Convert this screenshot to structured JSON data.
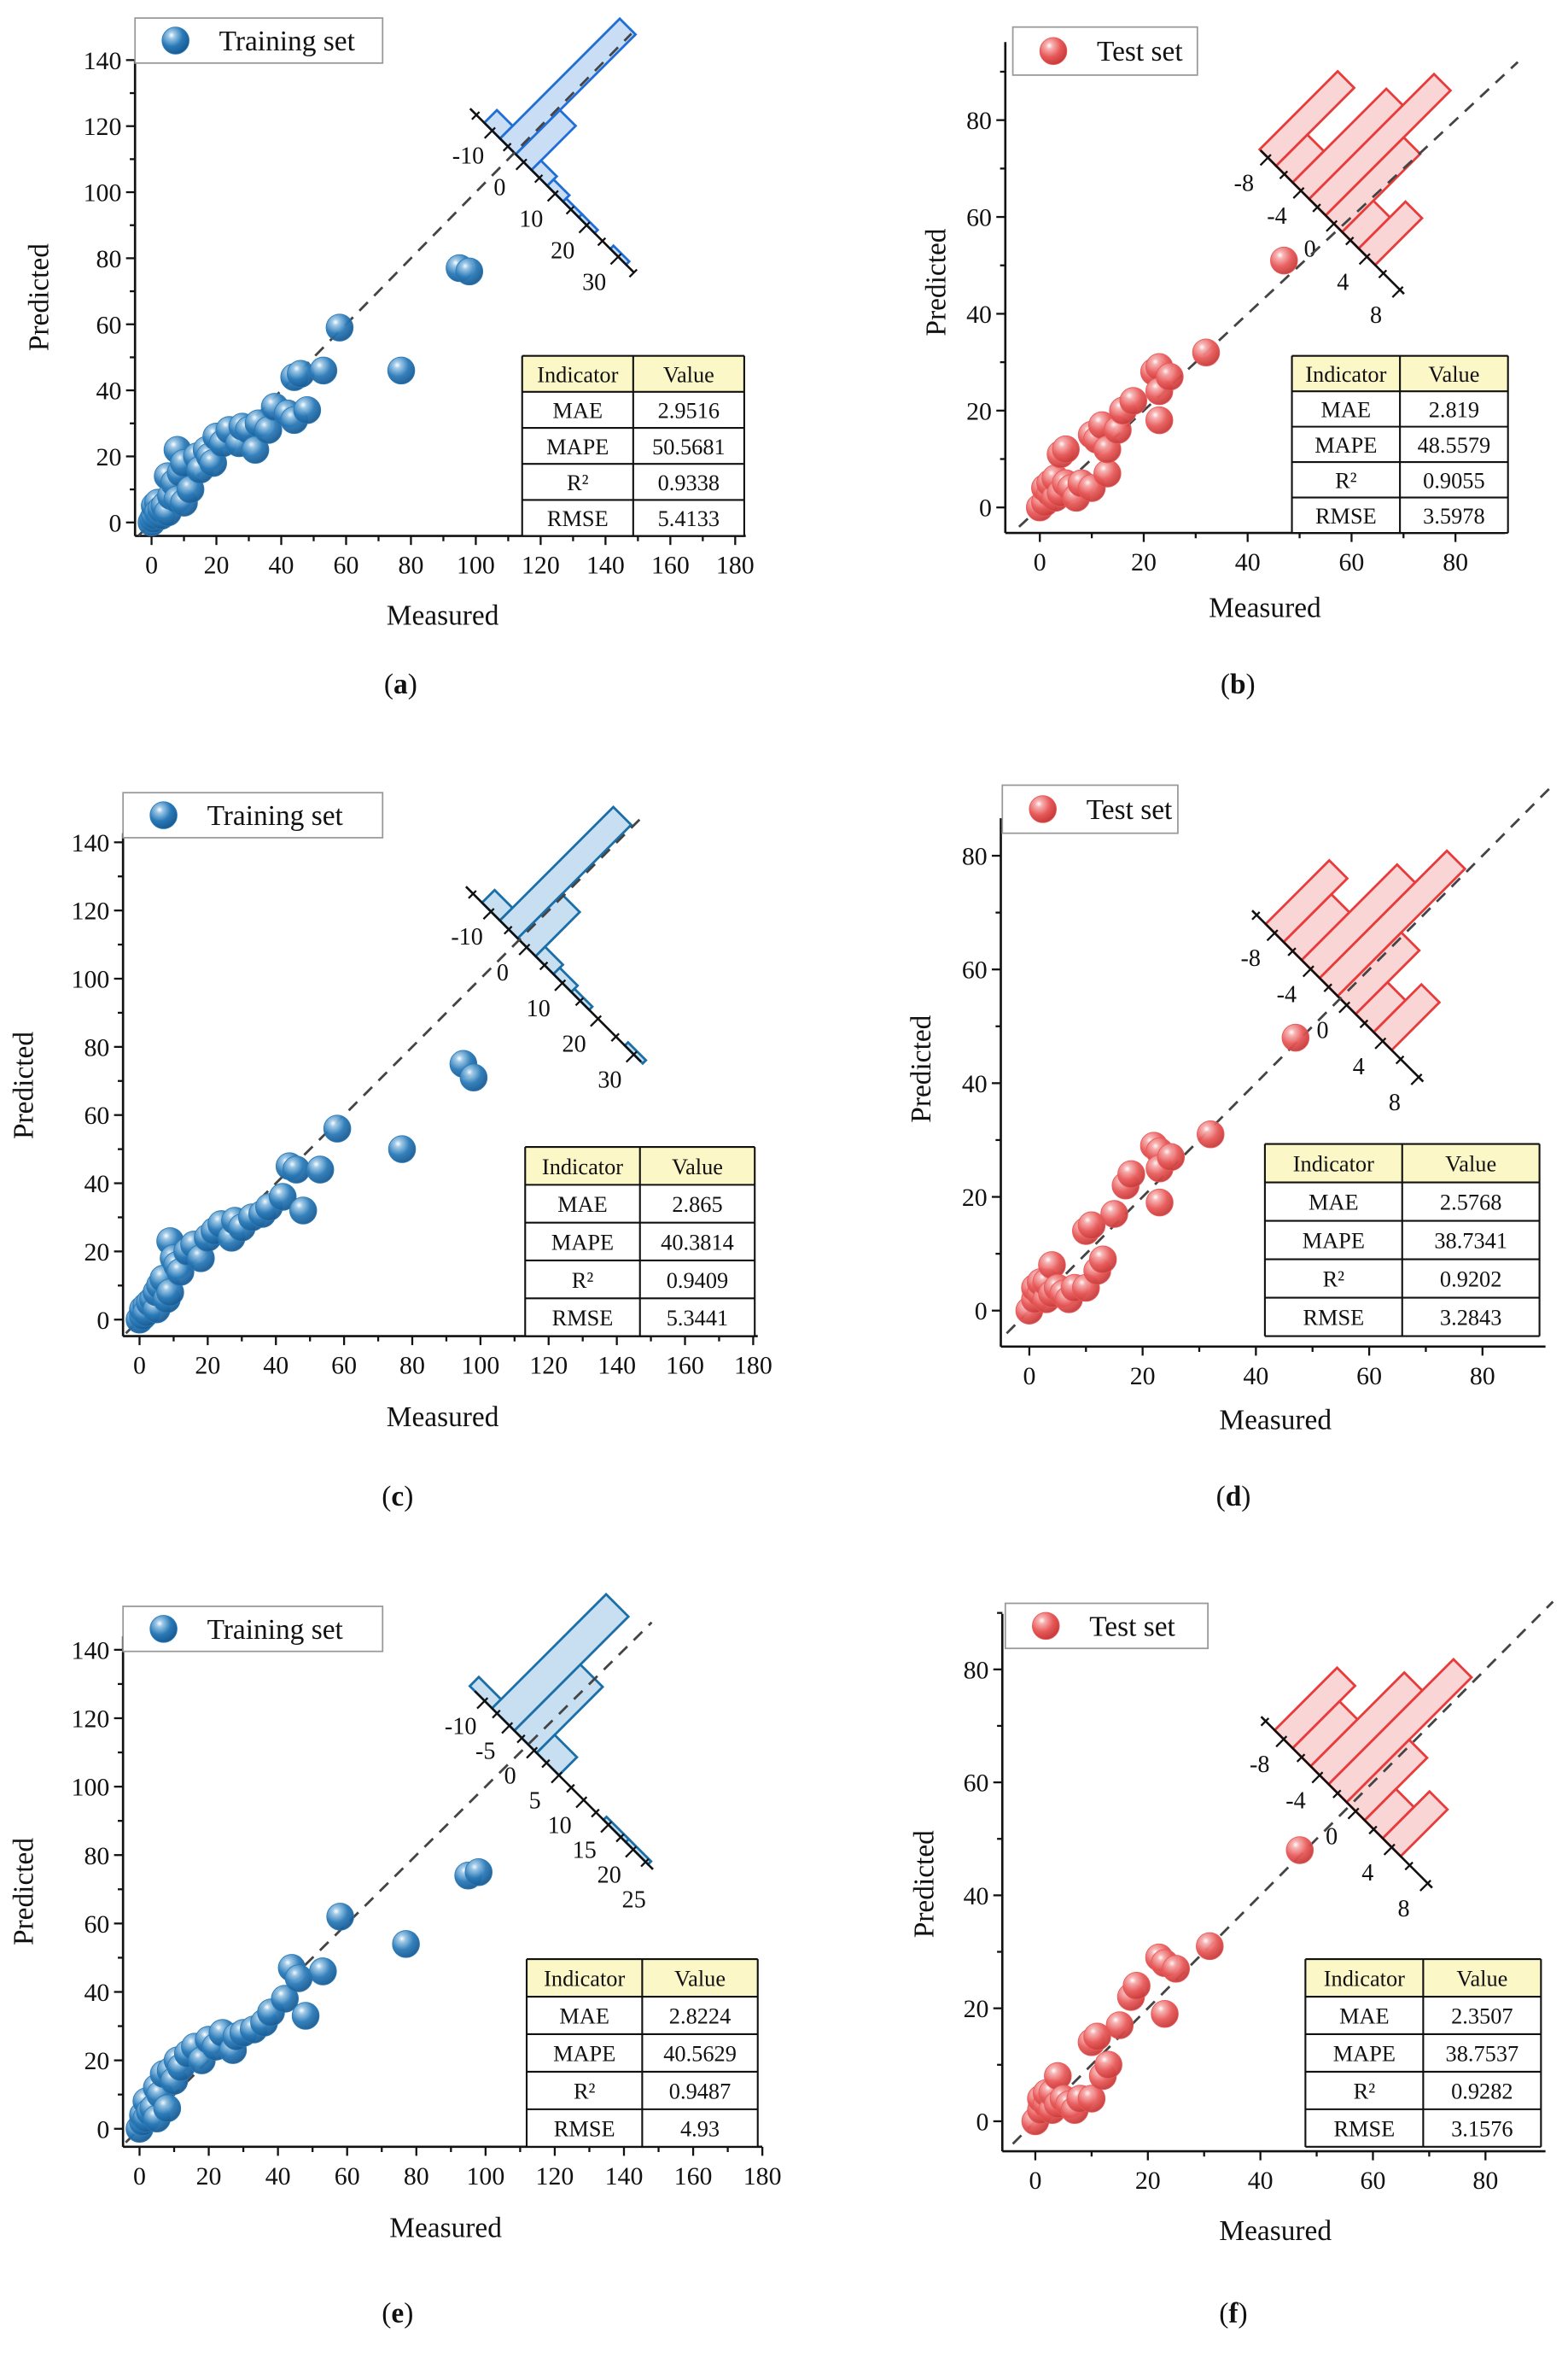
{
  "chart_data": [
    {
      "panel": "a",
      "caption": [
        "(",
        "a",
        ")"
      ],
      "type": "scatter",
      "legend": "Training set",
      "xlabel": "Measured",
      "ylabel": "Predicted",
      "xlim": [
        -5,
        180
      ],
      "ylim": [
        -4,
        145
      ],
      "xticks": [
        0,
        20,
        40,
        60,
        80,
        100,
        120,
        140,
        160,
        180
      ],
      "yticks": [
        0,
        20,
        40,
        60,
        80,
        100,
        120,
        140
      ],
      "colors": {
        "point": "#2a7ab8",
        "hist_fill": "#c9ddf5",
        "hist_stroke": "#1f6fd6"
      },
      "table": {
        "header": [
          "Indicator",
          "Value"
        ],
        "rows": [
          [
            "MAE",
            "2.9516"
          ],
          [
            "MAPE",
            "50.5681"
          ],
          [
            "R²",
            "0.9338"
          ],
          [
            "RMSE",
            "5.4133"
          ]
        ]
      },
      "residual_hist": {
        "ticks": [
          -10,
          0,
          10,
          20,
          30
        ],
        "bin_start": -12.5,
        "bin_width": 5,
        "counts": [
          4,
          38,
          14,
          3,
          2,
          1,
          1,
          0,
          1
        ]
      },
      "points": [
        [
          0,
          0
        ],
        [
          0.5,
          1
        ],
        [
          1,
          2
        ],
        [
          1,
          5
        ],
        [
          2,
          6
        ],
        [
          2,
          3
        ],
        [
          3,
          2
        ],
        [
          3,
          4
        ],
        [
          4,
          5
        ],
        [
          5,
          3
        ],
        [
          5,
          14
        ],
        [
          6,
          8
        ],
        [
          7,
          12
        ],
        [
          8,
          22
        ],
        [
          8,
          7
        ],
        [
          9,
          15
        ],
        [
          10,
          18
        ],
        [
          10,
          6
        ],
        [
          12,
          10
        ],
        [
          14,
          20
        ],
        [
          15,
          16
        ],
        [
          17,
          22
        ],
        [
          18,
          20
        ],
        [
          19,
          18
        ],
        [
          20,
          26
        ],
        [
          22,
          24
        ],
        [
          24,
          28
        ],
        [
          27,
          24
        ],
        [
          28,
          29
        ],
        [
          30,
          28
        ],
        [
          32,
          22
        ],
        [
          33,
          30
        ],
        [
          36,
          28
        ],
        [
          38,
          35
        ],
        [
          42,
          33
        ],
        [
          44,
          31
        ],
        [
          44,
          44
        ],
        [
          46,
          45
        ],
        [
          48,
          34
        ],
        [
          53,
          46
        ],
        [
          58,
          59
        ],
        [
          77,
          46
        ],
        [
          95,
          77
        ],
        [
          98,
          76
        ]
      ]
    },
    {
      "panel": "b",
      "caption": [
        "(",
        "b",
        ")"
      ],
      "type": "scatter",
      "legend": "Test set",
      "xlabel": "Measured",
      "ylabel": "Predicted",
      "xlim": [
        -5,
        90
      ],
      "ylim": [
        -4,
        90
      ],
      "xticks": [
        0,
        20,
        40,
        60,
        80
      ],
      "yticks": [
        0,
        20,
        40,
        60,
        80
      ],
      "colors": {
        "point": "#e85a5a",
        "hist_fill": "#f9d5d5",
        "hist_stroke": "#e83b3b"
      },
      "table": {
        "header": [
          "Indicator",
          "Value"
        ],
        "rows": [
          [
            "MAE",
            "2.819"
          ],
          [
            "MAPE",
            "48.5579"
          ],
          [
            "R²",
            "0.9055"
          ],
          [
            "RMSE",
            "3.5978"
          ]
        ]
      },
      "residual_hist": {
        "ticks": [
          -8,
          -4,
          0,
          4,
          8
        ],
        "bin_start": -9,
        "bin_width": 2,
        "counts": [
          5,
          2,
          6,
          8,
          5,
          2,
          3
        ]
      },
      "points": [
        [
          0,
          0
        ],
        [
          1,
          1
        ],
        [
          1,
          4
        ],
        [
          2,
          3
        ],
        [
          2,
          5
        ],
        [
          3,
          2
        ],
        [
          3,
          6
        ],
        [
          4,
          3
        ],
        [
          4,
          11
        ],
        [
          5,
          12
        ],
        [
          5,
          5
        ],
        [
          6,
          4
        ],
        [
          7,
          2
        ],
        [
          8,
          5
        ],
        [
          10,
          4
        ],
        [
          10,
          15
        ],
        [
          11,
          14
        ],
        [
          12,
          17
        ],
        [
          13,
          7
        ],
        [
          13,
          12
        ],
        [
          15,
          16
        ],
        [
          16,
          20
        ],
        [
          18,
          22
        ],
        [
          22,
          28
        ],
        [
          23,
          29
        ],
        [
          23,
          24
        ],
        [
          23,
          18
        ],
        [
          25,
          27
        ],
        [
          32,
          32
        ],
        [
          47,
          51
        ]
      ]
    },
    {
      "panel": "c",
      "caption": [
        "(",
        "c",
        ")"
      ],
      "type": "scatter",
      "legend": "Training set",
      "xlabel": "Measured",
      "ylabel": "Predicted",
      "xlim": [
        -5,
        180
      ],
      "ylim": [
        -4,
        145
      ],
      "xticks": [
        0,
        20,
        40,
        60,
        80,
        100,
        120,
        140,
        160,
        180
      ],
      "yticks": [
        0,
        20,
        40,
        60,
        80,
        100,
        120,
        140
      ],
      "colors": {
        "point": "#2a7ab8",
        "hist_fill": "#c7dff0",
        "hist_stroke": "#1a6fa8"
      },
      "table": {
        "header": [
          "Indicator",
          "Value"
        ],
        "rows": [
          [
            "MAE",
            "2.865"
          ],
          [
            "MAPE",
            "40.3814"
          ],
          [
            "R²",
            "0.9409"
          ],
          [
            "RMSE",
            "5.3441"
          ]
        ]
      },
      "residual_hist": {
        "ticks": [
          -10,
          0,
          10,
          20,
          30
        ],
        "bin_start": -12.5,
        "bin_width": 5,
        "counts": [
          4,
          36,
          14,
          3,
          2,
          1,
          0,
          0,
          1
        ]
      },
      "points": [
        [
          0,
          0
        ],
        [
          1,
          1
        ],
        [
          1,
          3
        ],
        [
          2,
          4
        ],
        [
          2,
          2
        ],
        [
          3,
          5
        ],
        [
          4,
          6
        ],
        [
          5,
          3
        ],
        [
          5,
          8
        ],
        [
          6,
          10
        ],
        [
          7,
          12
        ],
        [
          8,
          6
        ],
        [
          9,
          23
        ],
        [
          9,
          8
        ],
        [
          10,
          18
        ],
        [
          11,
          16
        ],
        [
          12,
          14
        ],
        [
          14,
          20
        ],
        [
          16,
          22
        ],
        [
          18,
          18
        ],
        [
          20,
          24
        ],
        [
          22,
          26
        ],
        [
          24,
          28
        ],
        [
          27,
          24
        ],
        [
          28,
          29
        ],
        [
          30,
          27
        ],
        [
          33,
          30
        ],
        [
          36,
          31
        ],
        [
          38,
          33
        ],
        [
          42,
          36
        ],
        [
          44,
          45
        ],
        [
          46,
          44
        ],
        [
          48,
          32
        ],
        [
          53,
          44
        ],
        [
          58,
          56
        ],
        [
          77,
          50
        ],
        [
          95,
          75
        ],
        [
          98,
          71
        ]
      ]
    },
    {
      "panel": "d",
      "caption": [
        "(",
        "d",
        ")"
      ],
      "type": "scatter",
      "legend": "Test set",
      "xlabel": "Measured",
      "ylabel": "Predicted",
      "xlim": [
        -5,
        90
      ],
      "ylim": [
        -6,
        90
      ],
      "xticks": [
        0,
        20,
        40,
        60,
        80
      ],
      "yticks": [
        0,
        20,
        40,
        60,
        80
      ],
      "colors": {
        "point": "#e85a5a",
        "hist_fill": "#f9d5d5",
        "hist_stroke": "#e83b3b"
      },
      "table": {
        "header": [
          "Indicator",
          "Value"
        ],
        "rows": [
          [
            "MAE",
            "2.5768"
          ],
          [
            "MAPE",
            "38.7341"
          ],
          [
            "R²",
            "0.9202"
          ],
          [
            "RMSE",
            "3.2843"
          ]
        ]
      },
      "residual_hist": {
        "ticks": [
          -8,
          -4,
          0,
          4,
          8
        ],
        "bin_start": -9,
        "bin_width": 2,
        "counts": [
          4,
          3,
          6,
          8,
          4,
          2,
          3
        ]
      },
      "points": [
        [
          0,
          0
        ],
        [
          1,
          2
        ],
        [
          1,
          4
        ],
        [
          2,
          3
        ],
        [
          2,
          5
        ],
        [
          3,
          2
        ],
        [
          3,
          5
        ],
        [
          4,
          8
        ],
        [
          4,
          3
        ],
        [
          5,
          4
        ],
        [
          6,
          3
        ],
        [
          7,
          2
        ],
        [
          8,
          4
        ],
        [
          10,
          4
        ],
        [
          10,
          14
        ],
        [
          11,
          15
        ],
        [
          12,
          7
        ],
        [
          13,
          9
        ],
        [
          15,
          17
        ],
        [
          17,
          22
        ],
        [
          18,
          24
        ],
        [
          22,
          29
        ],
        [
          23,
          28
        ],
        [
          23,
          25
        ],
        [
          23,
          19
        ],
        [
          25,
          27
        ],
        [
          32,
          31
        ],
        [
          47,
          48
        ]
      ]
    },
    {
      "panel": "e",
      "caption": [
        "(",
        "e",
        ")"
      ],
      "type": "scatter",
      "legend": "Training set",
      "xlabel": "Measured",
      "ylabel": "Predicted",
      "xlim": [
        -5,
        180
      ],
      "ylim": [
        -4,
        145
      ],
      "xticks": [
        0,
        20,
        40,
        60,
        80,
        100,
        120,
        140,
        160,
        180
      ],
      "yticks": [
        0,
        20,
        40,
        60,
        80,
        100,
        120,
        140
      ],
      "colors": {
        "point": "#2a7ab8",
        "hist_fill": "#c7dff0",
        "hist_stroke": "#1a6fa8"
      },
      "table": {
        "header": [
          "Indicator",
          "Value"
        ],
        "rows": [
          [
            "MAE",
            "2.8224"
          ],
          [
            "MAPE",
            "40.5629"
          ],
          [
            "R²",
            "0.9487"
          ],
          [
            "RMSE",
            "4.93"
          ]
        ]
      },
      "residual_hist": {
        "ticks": [
          -10,
          -5,
          0,
          5,
          10,
          15,
          20,
          25
        ],
        "bin_start": -13,
        "bin_width": 4.5,
        "counts": [
          3,
          38,
          22,
          6,
          0,
          0,
          1,
          1
        ]
      },
      "points": [
        [
          0,
          0
        ],
        [
          1,
          2
        ],
        [
          1,
          4
        ],
        [
          2,
          8
        ],
        [
          2,
          3
        ],
        [
          3,
          5
        ],
        [
          4,
          6
        ],
        [
          5,
          3
        ],
        [
          5,
          12
        ],
        [
          6,
          10
        ],
        [
          7,
          16
        ],
        [
          8,
          6
        ],
        [
          9,
          17
        ],
        [
          10,
          14
        ],
        [
          11,
          20
        ],
        [
          12,
          18
        ],
        [
          14,
          22
        ],
        [
          16,
          24
        ],
        [
          18,
          20
        ],
        [
          20,
          26
        ],
        [
          22,
          24
        ],
        [
          24,
          28
        ],
        [
          27,
          23
        ],
        [
          28,
          27
        ],
        [
          30,
          28
        ],
        [
          33,
          29
        ],
        [
          36,
          31
        ],
        [
          38,
          34
        ],
        [
          42,
          38
        ],
        [
          44,
          47
        ],
        [
          46,
          44
        ],
        [
          48,
          33
        ],
        [
          53,
          46
        ],
        [
          58,
          62
        ],
        [
          77,
          54
        ],
        [
          95,
          74
        ],
        [
          98,
          75
        ]
      ]
    },
    {
      "panel": "f",
      "caption": [
        "(",
        "f",
        ")"
      ],
      "type": "scatter",
      "legend": "Test set",
      "xlabel": "Measured",
      "ylabel": "Predicted",
      "xlim": [
        -5,
        90
      ],
      "ylim": [
        -5,
        90
      ],
      "xticks": [
        0,
        20,
        40,
        60,
        80
      ],
      "yticks": [
        0,
        20,
        40,
        60,
        80
      ],
      "colors": {
        "point": "#e85a5a",
        "hist_fill": "#f9d5d5",
        "hist_stroke": "#e83b3b"
      },
      "table": {
        "header": [
          "Indicator",
          "Value"
        ],
        "rows": [
          [
            "MAE",
            "2.3507"
          ],
          [
            "MAPE",
            "38.7537"
          ],
          [
            "R²",
            "0.9282"
          ],
          [
            "RMSE",
            "3.1576"
          ]
        ]
      },
      "residual_hist": {
        "ticks": [
          -8,
          -4,
          0,
          4,
          8
        ],
        "bin_start": -9,
        "bin_width": 2,
        "counts": [
          4,
          3,
          6,
          8,
          4,
          2,
          3
        ]
      },
      "points": [
        [
          0,
          0
        ],
        [
          1,
          2
        ],
        [
          1,
          4
        ],
        [
          2,
          3
        ],
        [
          2,
          5
        ],
        [
          3,
          2
        ],
        [
          3,
          5
        ],
        [
          4,
          8
        ],
        [
          4,
          3
        ],
        [
          5,
          4
        ],
        [
          6,
          3
        ],
        [
          7,
          2
        ],
        [
          8,
          4
        ],
        [
          10,
          4
        ],
        [
          10,
          14
        ],
        [
          11,
          15
        ],
        [
          12,
          8
        ],
        [
          13,
          10
        ],
        [
          15,
          17
        ],
        [
          17,
          22
        ],
        [
          18,
          24
        ],
        [
          22,
          29
        ],
        [
          23,
          28
        ],
        [
          23,
          19
        ],
        [
          25,
          27
        ],
        [
          31,
          31
        ],
        [
          47,
          48
        ]
      ]
    }
  ]
}
